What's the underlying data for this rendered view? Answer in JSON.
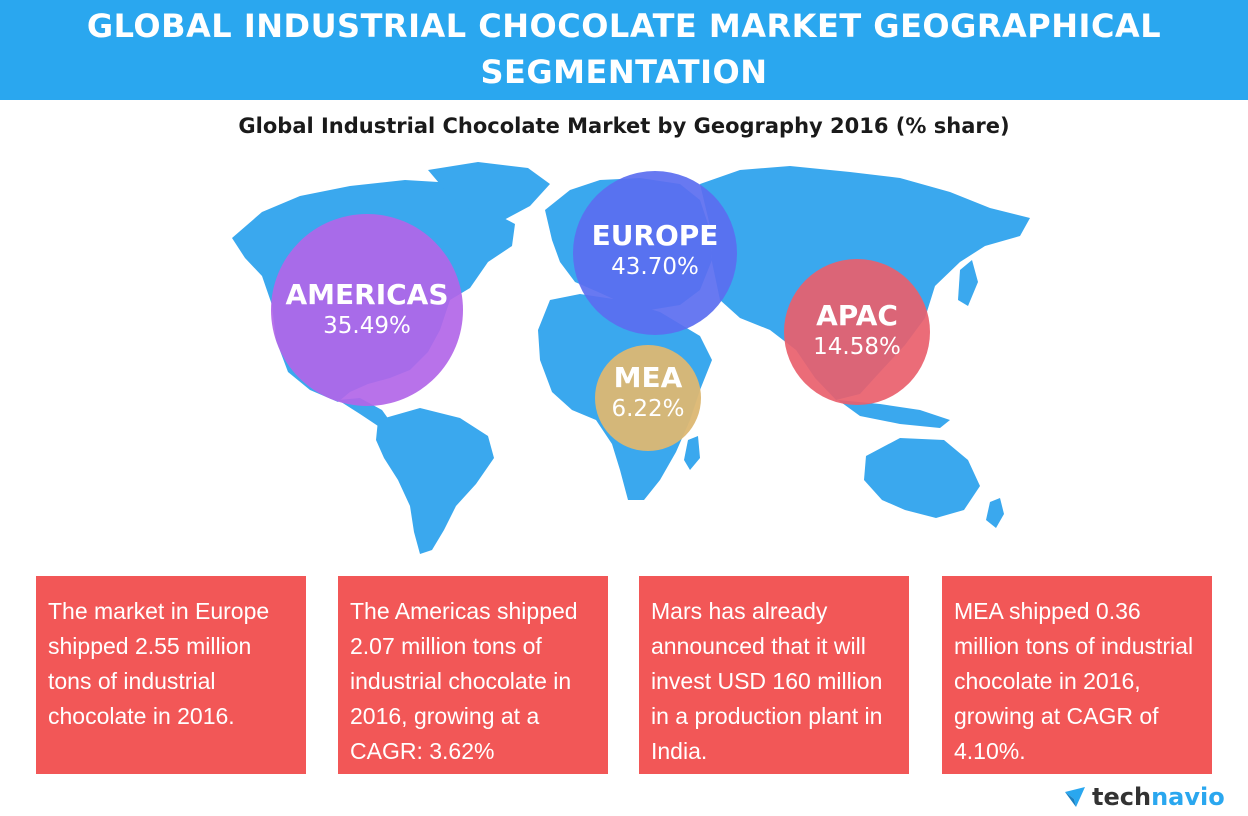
{
  "header": {
    "title_line1": "GLOBAL INDUSTRIAL CHOCOLATE MARKET GEOGRAPHICAL",
    "title_line2": "SEGMENTATION"
  },
  "subtitle": "Global Industrial Chocolate Market by Geography 2016 (% share)",
  "regions": [
    {
      "name": "AMERICAS",
      "share": "35.49%",
      "color": "#b266e8"
    },
    {
      "name": "EUROPE",
      "share": "43.70%",
      "color": "#5b6ef0"
    },
    {
      "name": "APAC",
      "share": "14.58%",
      "color": "#e9606d"
    },
    {
      "name": "MEA",
      "share": "6.22%",
      "color": "#dcb772"
    }
  ],
  "facts": [
    "The market in Europe shipped 2.55 million tons of industrial chocolate in 2016.",
    "The Americas shipped 2.07 million tons of industrial chocolate in 2016, growing at a CAGR: 3.62%",
    "Mars has already announced that it will invest USD 160 million in a production plant in India.",
    "MEA shipped 0.36 million tons of industrial chocolate in 2016, growing at CAGR of 4.10%."
  ],
  "logo": {
    "part1": "tech",
    "part2": "navio",
    "icon": "technavio-arrow-icon"
  },
  "colors": {
    "header": "#2aa7ef",
    "map": "#3aa8ee",
    "box": "#f25757"
  }
}
